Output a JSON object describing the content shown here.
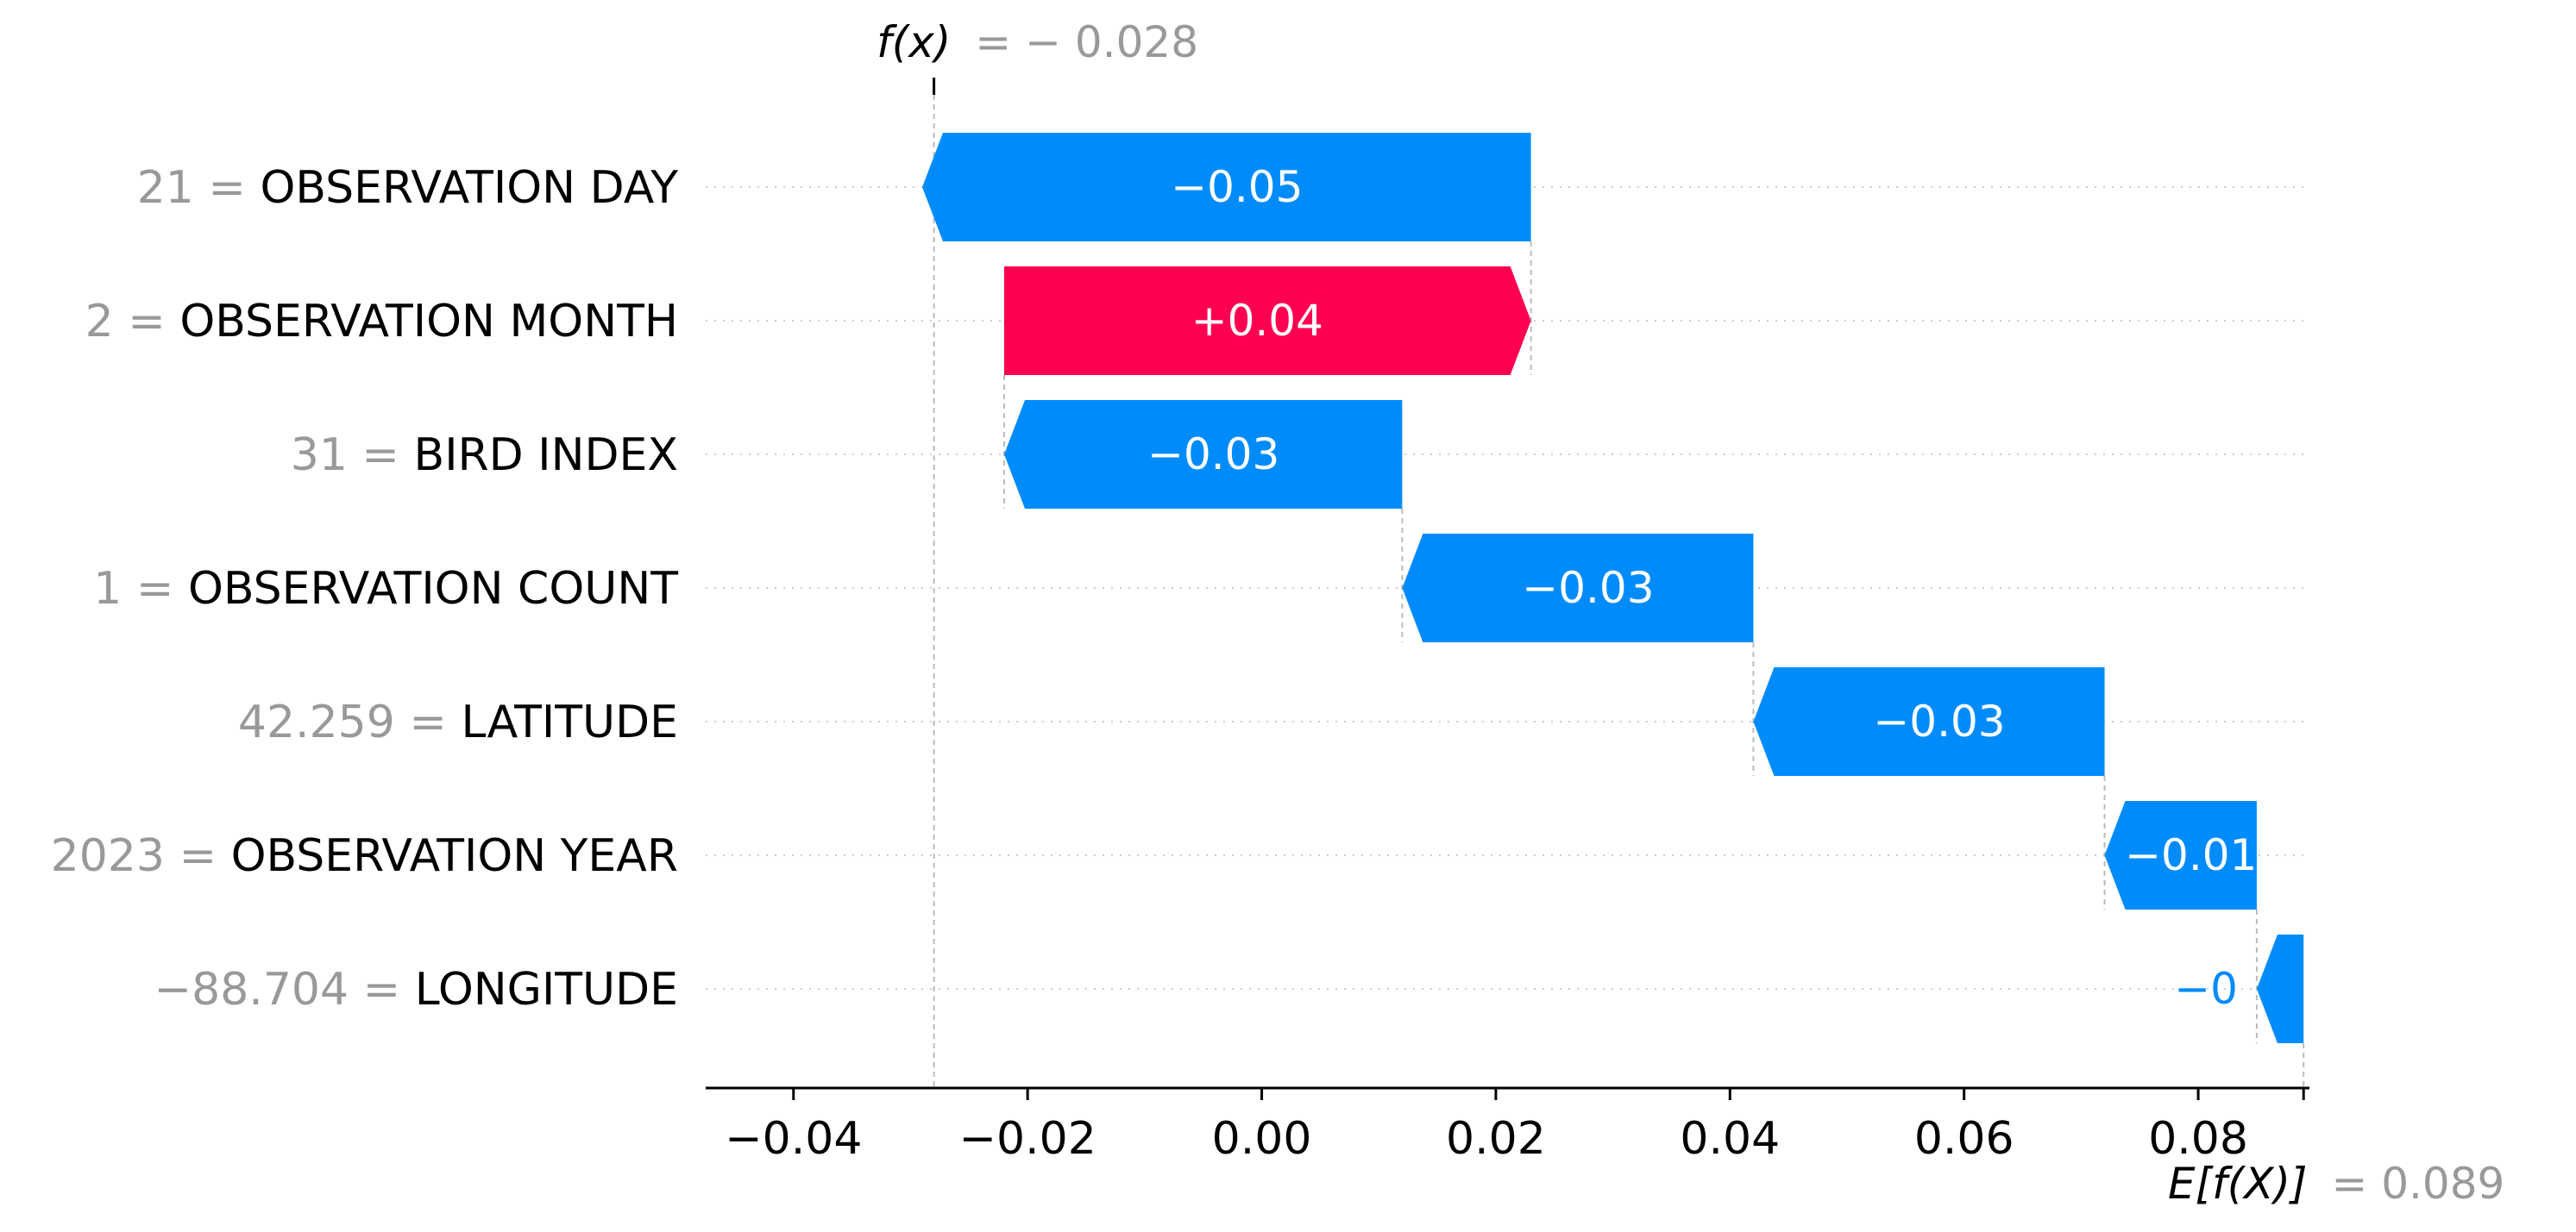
{
  "chart_data": {
    "type": "waterfall",
    "base_value": 0.089,
    "output_value": -0.028,
    "output_label": {
      "name": "f(x)",
      "text": "= − 0.028"
    },
    "base_label": {
      "name": "E[f(X)]",
      "text": "= 0.089"
    },
    "features": [
      {
        "value": "21",
        "name": "OBSERVATION DAY",
        "shap": -0.052,
        "label": "−0.05"
      },
      {
        "value": "2",
        "name": "OBSERVATION MONTH",
        "shap": 0.045,
        "label": "+0.04"
      },
      {
        "value": "31",
        "name": "BIRD INDEX",
        "shap": -0.034,
        "label": "−0.03"
      },
      {
        "value": "1",
        "name": "OBSERVATION COUNT",
        "shap": -0.03,
        "label": "−0.03"
      },
      {
        "value": "42.259",
        "name": "LATITUDE",
        "shap": -0.03,
        "label": "−0.03"
      },
      {
        "value": "2023",
        "name": "OBSERVATION YEAR",
        "shap": -0.013,
        "label": "−0.01"
      },
      {
        "value": "−88.704",
        "name": "LONGITUDE",
        "shap": -0.004,
        "label": "−0"
      }
    ],
    "x_ticks": [
      -0.04,
      -0.02,
      0.0,
      0.02,
      0.04,
      0.06,
      0.08
    ],
    "x_tick_labels": [
      "−0.04",
      "−0.02",
      "0.00",
      "0.02",
      "0.04",
      "0.06",
      "0.08"
    ],
    "xlim": [
      -0.0475,
      0.0895
    ],
    "xlabel": "",
    "ylabel": "",
    "title": "",
    "grid": false,
    "legend": "none",
    "colors": {
      "positive": "#ff0051",
      "negative": "#008bfb",
      "value_text": "#999999",
      "name_text": "#000000",
      "axis": "#000000",
      "guide": "#bbbbbb",
      "dotted_row": "#cccccc"
    },
    "equals_sign": "="
  }
}
